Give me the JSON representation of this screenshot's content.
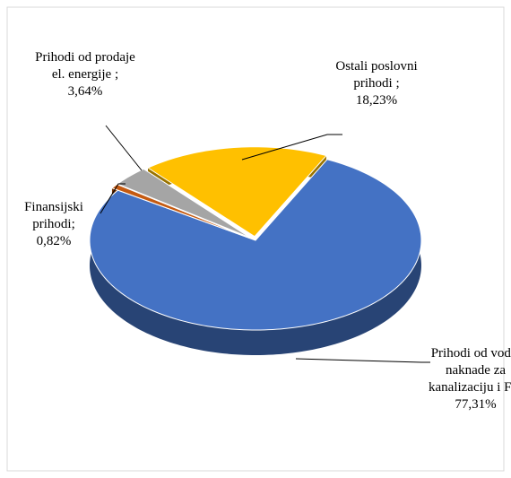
{
  "chart_data": {
    "type": "pie3d",
    "categories": [
      "Prihodi od vode, naknade za kanalizaciju i FT;",
      "Finansijski prihodi;",
      "Prihodi od prodaje el. energije ;",
      "Ostali poslovni prihodi ;"
    ],
    "values": [
      77.31,
      0.82,
      3.64,
      18.23
    ],
    "value_labels": [
      "77,31%",
      "0,82%",
      "3,64%",
      "18,23%"
    ],
    "colors": [
      "#4472c4",
      "#c55a11",
      "#a5a5a5",
      "#ffc000"
    ]
  }
}
